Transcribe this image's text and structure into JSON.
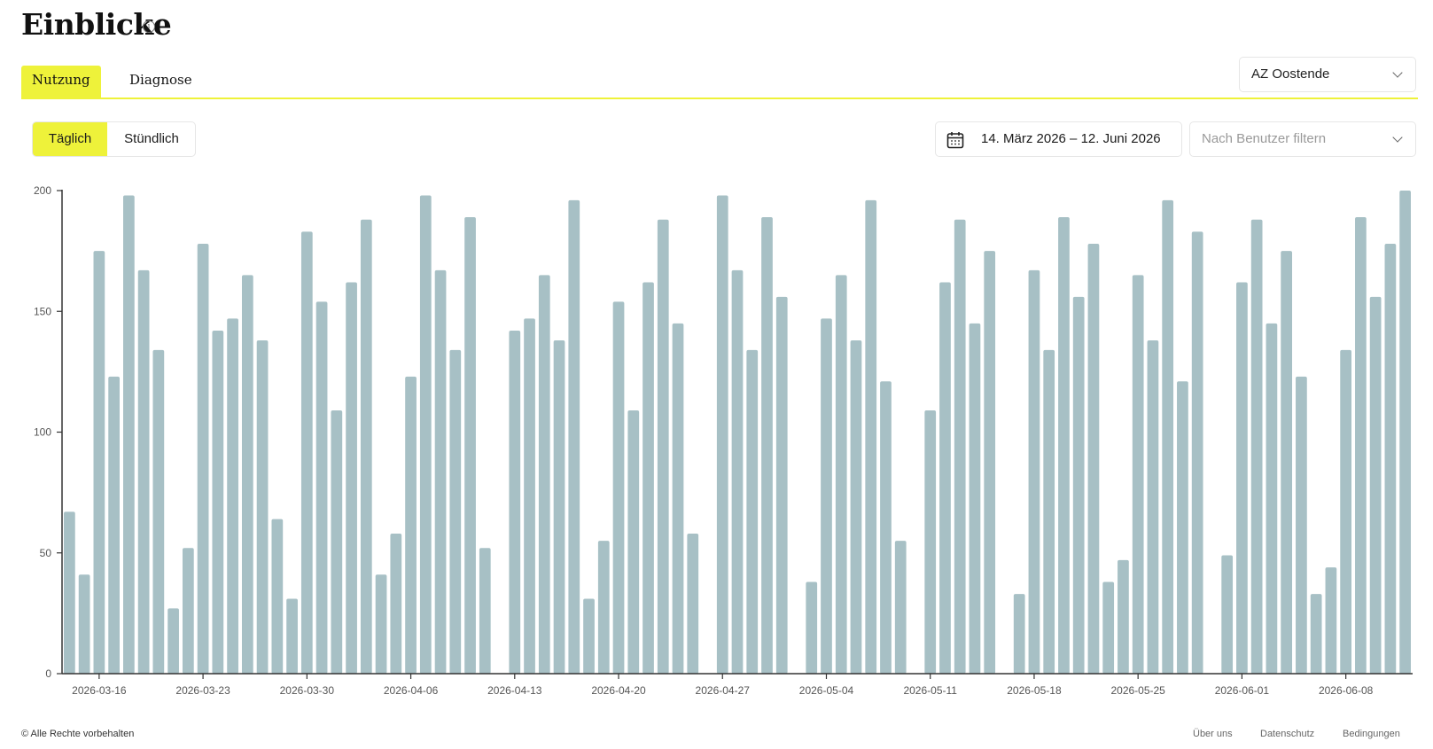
{
  "header": {
    "title": "Einblicke"
  },
  "tabs": [
    {
      "label": "Nutzung",
      "active": true
    },
    {
      "label": "Diagnose",
      "active": false
    }
  ],
  "location": {
    "selected": "AZ Oostende"
  },
  "granularity": {
    "daily": "Täglich",
    "hourly": "Stündlich",
    "selected": "daily"
  },
  "date_range": {
    "label": "14. März 2026 – 12. Juni 2026"
  },
  "user_filter": {
    "placeholder": "Nach Benutzer filtern"
  },
  "colors": {
    "accent": "#eef23a",
    "bar": "#a7c0c5",
    "axis": "#333333"
  },
  "chart_data": {
    "type": "bar",
    "title": "",
    "xlabel": "",
    "ylabel": "",
    "ylim": [
      0,
      200
    ],
    "yticks": [
      0,
      50,
      100,
      150,
      200
    ],
    "grid": false,
    "x": [
      "2026-03-14",
      "2026-03-15",
      "2026-03-16",
      "2026-03-17",
      "2026-03-18",
      "2026-03-19",
      "2026-03-20",
      "2026-03-21",
      "2026-03-22",
      "2026-03-23",
      "2026-03-24",
      "2026-03-25",
      "2026-03-26",
      "2026-03-27",
      "2026-03-28",
      "2026-03-29",
      "2026-03-30",
      "2026-03-31",
      "2026-04-01",
      "2026-04-02",
      "2026-04-03",
      "2026-04-04",
      "2026-04-05",
      "2026-04-06",
      "2026-04-07",
      "2026-04-08",
      "2026-04-09",
      "2026-04-10",
      "2026-04-11",
      "2026-04-12",
      "2026-04-13",
      "2026-04-14",
      "2026-04-15",
      "2026-04-16",
      "2026-04-17",
      "2026-04-18",
      "2026-04-19",
      "2026-04-20",
      "2026-04-21",
      "2026-04-22",
      "2026-04-23",
      "2026-04-24",
      "2026-04-25",
      "2026-04-26",
      "2026-04-27",
      "2026-04-28",
      "2026-04-29",
      "2026-04-30",
      "2026-05-01",
      "2026-05-02",
      "2026-05-03",
      "2026-05-04",
      "2026-05-05",
      "2026-05-06",
      "2026-05-07",
      "2026-05-08",
      "2026-05-09",
      "2026-05-10",
      "2026-05-11",
      "2026-05-12",
      "2026-05-13",
      "2026-05-14",
      "2026-05-15",
      "2026-05-16",
      "2026-05-17",
      "2026-05-18",
      "2026-05-19",
      "2026-05-20",
      "2026-05-21",
      "2026-05-22",
      "2026-05-23",
      "2026-05-24",
      "2026-05-25",
      "2026-05-26",
      "2026-05-27",
      "2026-05-28",
      "2026-05-29",
      "2026-05-30",
      "2026-05-31",
      "2026-06-01",
      "2026-06-02",
      "2026-06-03",
      "2026-06-04",
      "2026-06-05",
      "2026-06-06",
      "2026-06-07",
      "2026-06-08",
      "2026-06-09",
      "2026-06-10",
      "2026-06-11",
      "2026-06-12"
    ],
    "values": [
      67,
      41,
      175,
      123,
      198,
      167,
      134,
      27,
      52,
      178,
      142,
      147,
      165,
      138,
      64,
      31,
      183,
      154,
      109,
      162,
      188,
      41,
      58,
      123,
      198,
      167,
      134,
      189,
      52,
      0,
      142,
      147,
      165,
      138,
      196,
      31,
      55,
      154,
      109,
      162,
      188,
      145,
      58,
      0,
      198,
      167,
      134,
      189,
      156,
      0,
      38,
      147,
      165,
      138,
      196,
      121,
      55,
      0,
      109,
      162,
      188,
      145,
      175,
      0,
      33,
      167,
      134,
      189,
      156,
      178,
      38,
      47,
      165,
      138,
      196,
      121,
      183,
      0,
      49,
      162,
      188,
      145,
      175,
      123,
      33,
      44,
      134,
      189,
      156,
      178,
      200
    ],
    "xticks": [
      "2026-03-16",
      "2026-03-23",
      "2026-03-30",
      "2026-04-06",
      "2026-04-13",
      "2026-04-20",
      "2026-04-27",
      "2026-05-04",
      "2026-05-11",
      "2026-05-18",
      "2026-05-25",
      "2026-06-01",
      "2026-06-08"
    ]
  },
  "footer": {
    "copyright": "© Alle Rechte vorbehalten",
    "links": [
      "Über uns",
      "Datenschutz",
      "Bedingungen"
    ]
  }
}
